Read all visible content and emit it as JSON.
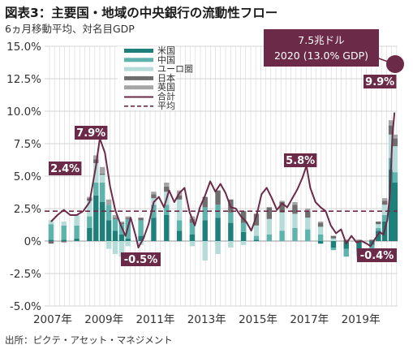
{
  "title": "図表3：主要国・地域の中央銀行の流動性フロー",
  "subtitle": "6ヵ月移動平均、対名目GDP",
  "source": "出所：ピクテ・アセット・マネジメント",
  "callout": {
    "line1": "7.5兆ドル",
    "line2": "2020 (13.0% GDP)"
  },
  "colors": {
    "us": "#1f7f7a",
    "china": "#5fb3ad",
    "euro": "#b6dcda",
    "japan": "#6e6e6e",
    "uk": "#a5a5a5",
    "total": "#6b2a48",
    "average": "#6b2a48",
    "label_bg": "#6b2a48"
  },
  "chart_data": {
    "type": "bar",
    "stacked": true,
    "xlabel": "",
    "ylabel": "",
    "ylim": [
      -5.0,
      15.0
    ],
    "yticks": [
      "15.0%",
      "12.5%",
      "10.0%",
      "7.5%",
      "5.0%",
      "2.5%",
      "0%",
      "-2.5%",
      "-5.0%"
    ],
    "ytick_values": [
      15.0,
      12.5,
      10.0,
      7.5,
      5.0,
      2.5,
      0,
      -2.5,
      -5.0
    ],
    "xticks": [
      "2007年",
      "2009年",
      "2011年",
      "2013年",
      "2015年",
      "2017年",
      "2019年"
    ],
    "xtick_values": [
      2007,
      2009,
      2011,
      2013,
      2015,
      2017,
      2019
    ],
    "xlim": [
      2006.75,
      2020.5
    ],
    "legend": {
      "placement": "top-center",
      "entries": [
        "米国",
        "中国",
        "ユーロ圏",
        "日本",
        "英国",
        "合計",
        "平均"
      ]
    },
    "average": 2.3,
    "annotations": [
      {
        "text": "2.4%",
        "x": 2007.5,
        "y": 2.4
      },
      {
        "text": "7.9%",
        "x": 2008.9,
        "y": 7.9
      },
      {
        "text": "-0.5%",
        "x": 2010.4,
        "y": -0.5
      },
      {
        "text": "5.8%",
        "x": 2016.9,
        "y": 5.8
      },
      {
        "text": "-0.4%",
        "x": 2019.4,
        "y": -0.4
      },
      {
        "text": "9.9%",
        "x": 2020.3,
        "y": 9.9
      }
    ],
    "series": [
      {
        "name": "米国",
        "type": "bar",
        "x": [
          2007.0,
          2007.5,
          2008.0,
          2008.5,
          2008.75,
          2009.0,
          2009.25,
          2009.5,
          2009.75,
          2010.0,
          2010.5,
          2011.0,
          2011.5,
          2012.0,
          2012.5,
          2013.0,
          2013.5,
          2014.0,
          2014.5,
          2015.0,
          2015.5,
          2016.0,
          2016.5,
          2017.0,
          2017.5,
          2018.0,
          2018.5,
          2019.0,
          2019.5,
          2019.75,
          2020.0,
          2020.25,
          2020.4
        ],
        "values": [
          0.1,
          0.1,
          0.2,
          1.0,
          3.5,
          3.0,
          1.6,
          0.8,
          0.5,
          0.2,
          0.4,
          1.8,
          2.0,
          0.8,
          0.5,
          1.6,
          1.8,
          1.4,
          0.7,
          0.1,
          0.0,
          0.0,
          0.0,
          0.0,
          -0.2,
          -0.5,
          -0.6,
          -0.8,
          -0.3,
          0.8,
          1.5,
          5.5,
          4.5
        ]
      },
      {
        "name": "中国",
        "type": "bar",
        "x": [
          2007.0,
          2007.5,
          2008.0,
          2008.5,
          2008.75,
          2009.0,
          2009.25,
          2009.5,
          2009.75,
          2010.0,
          2010.5,
          2011.0,
          2011.5,
          2012.0,
          2012.5,
          2013.0,
          2013.5,
          2014.0,
          2014.5,
          2015.0,
          2015.5,
          2016.0,
          2016.5,
          2017.0,
          2017.5,
          2018.0,
          2018.5,
          2019.0,
          2019.5,
          2019.75,
          2020.0,
          2020.25,
          2020.4
        ],
        "values": [
          1.2,
          1.1,
          1.0,
          0.9,
          1.0,
          1.5,
          1.2,
          0.9,
          0.8,
          1.5,
          1.2,
          1.0,
          0.8,
          0.8,
          0.9,
          1.0,
          1.0,
          0.8,
          0.7,
          0.3,
          0.5,
          0.8,
          1.0,
          0.9,
          0.5,
          -0.2,
          -0.6,
          -0.3,
          -0.4,
          0.2,
          0.5,
          0.9,
          0.8
        ]
      },
      {
        "name": "ユーロ圏",
        "type": "bar",
        "x": [
          2007.0,
          2007.5,
          2008.0,
          2008.5,
          2008.75,
          2009.0,
          2009.25,
          2009.5,
          2009.75,
          2010.0,
          2010.5,
          2011.0,
          2011.5,
          2012.0,
          2012.5,
          2013.0,
          2013.5,
          2014.0,
          2014.5,
          2015.0,
          2015.5,
          2016.0,
          2016.5,
          2017.0,
          2017.5,
          2018.0,
          2018.5,
          2019.0,
          2019.5,
          2019.75,
          2020.0,
          2020.25,
          2020.4
        ],
        "values": [
          0.3,
          0.3,
          0.8,
          1.2,
          1.5,
          0.6,
          -0.6,
          -1.0,
          -1.2,
          -0.4,
          -0.3,
          0.5,
          1.0,
          1.6,
          -0.4,
          -1.5,
          -1.0,
          -0.5,
          -0.3,
          0.8,
          1.2,
          1.4,
          1.1,
          0.9,
          0.6,
          0.2,
          0.0,
          -0.2,
          -0.1,
          0.3,
          0.8,
          1.8,
          2.0
        ]
      },
      {
        "name": "日本",
        "type": "bar",
        "x": [
          2007.0,
          2007.5,
          2008.0,
          2008.5,
          2008.75,
          2009.0,
          2009.25,
          2009.5,
          2009.75,
          2010.0,
          2010.5,
          2011.0,
          2011.5,
          2012.0,
          2012.5,
          2013.0,
          2013.5,
          2014.0,
          2014.5,
          2015.0,
          2015.5,
          2016.0,
          2016.5,
          2017.0,
          2017.5,
          2018.0,
          2018.5,
          2019.0,
          2019.5,
          2019.75,
          2020.0,
          2020.25,
          2020.4
        ],
        "values": [
          -0.2,
          -0.1,
          0.0,
          0.2,
          0.3,
          0.1,
          0.0,
          0.1,
          0.1,
          0.1,
          0.2,
          0.3,
          0.4,
          0.3,
          0.3,
          0.8,
          1.1,
          1.0,
          0.9,
          0.9,
          0.9,
          0.8,
          0.7,
          0.5,
          0.3,
          0.2,
          0.1,
          0.1,
          0.1,
          0.2,
          0.3,
          0.7,
          0.6
        ]
      },
      {
        "name": "英国",
        "type": "bar",
        "x": [
          2007.0,
          2007.5,
          2008.0,
          2008.5,
          2008.75,
          2009.0,
          2009.25,
          2009.5,
          2009.75,
          2010.0,
          2010.5,
          2011.0,
          2011.5,
          2012.0,
          2012.5,
          2013.0,
          2013.5,
          2014.0,
          2014.5,
          2015.0,
          2015.5,
          2016.0,
          2016.5,
          2017.0,
          2017.5,
          2018.0,
          2018.5,
          2019.0,
          2019.5,
          2019.75,
          2020.0,
          2020.25,
          2020.4
        ],
        "values": [
          0.0,
          0.0,
          0.0,
          0.1,
          0.3,
          0.5,
          0.4,
          0.2,
          0.1,
          0.1,
          0.0,
          0.2,
          0.3,
          0.4,
          0.2,
          0.0,
          0.0,
          0.0,
          0.0,
          0.0,
          0.0,
          0.1,
          0.2,
          0.2,
          0.1,
          0.0,
          0.0,
          0.0,
          0.0,
          0.0,
          0.2,
          0.4,
          0.3
        ]
      },
      {
        "name": "合計",
        "type": "line",
        "x": [
          2007.0,
          2007.25,
          2007.5,
          2007.75,
          2008.0,
          2008.25,
          2008.5,
          2008.75,
          2008.9,
          2009.1,
          2009.3,
          2009.5,
          2009.7,
          2009.9,
          2010.1,
          2010.3,
          2010.4,
          2010.6,
          2010.8,
          2011.0,
          2011.2,
          2011.4,
          2011.6,
          2011.8,
          2012.0,
          2012.2,
          2012.4,
          2012.6,
          2012.8,
          2013.0,
          2013.2,
          2013.4,
          2013.6,
          2013.8,
          2014.0,
          2014.2,
          2014.4,
          2014.6,
          2014.8,
          2015.0,
          2015.2,
          2015.4,
          2015.6,
          2015.8,
          2016.0,
          2016.2,
          2016.4,
          2016.6,
          2016.8,
          2016.95,
          2017.1,
          2017.3,
          2017.5,
          2017.7,
          2017.9,
          2018.1,
          2018.3,
          2018.5,
          2018.7,
          2018.9,
          2019.1,
          2019.3,
          2019.45,
          2019.6,
          2019.8,
          2019.95,
          2020.1,
          2020.2,
          2020.3,
          2020.38
        ],
        "values": [
          1.5,
          2.0,
          2.4,
          2.0,
          2.0,
          2.3,
          3.0,
          5.8,
          7.9,
          6.8,
          4.2,
          2.4,
          1.3,
          0.4,
          1.8,
          0.4,
          -0.5,
          0.2,
          1.3,
          3.0,
          3.4,
          2.6,
          3.9,
          3.0,
          3.7,
          4.1,
          2.2,
          1.2,
          2.6,
          3.5,
          4.6,
          3.8,
          4.4,
          3.7,
          2.6,
          2.5,
          1.9,
          1.5,
          0.8,
          1.9,
          3.6,
          4.1,
          3.3,
          2.4,
          2.9,
          2.6,
          3.3,
          4.0,
          4.9,
          5.8,
          4.1,
          3.0,
          2.6,
          2.3,
          1.2,
          0.6,
          0.9,
          -0.2,
          0.4,
          -0.1,
          0.0,
          -0.2,
          -0.4,
          0.1,
          0.7,
          0.5,
          1.6,
          3.6,
          8.2,
          9.9
        ]
      }
    ]
  }
}
